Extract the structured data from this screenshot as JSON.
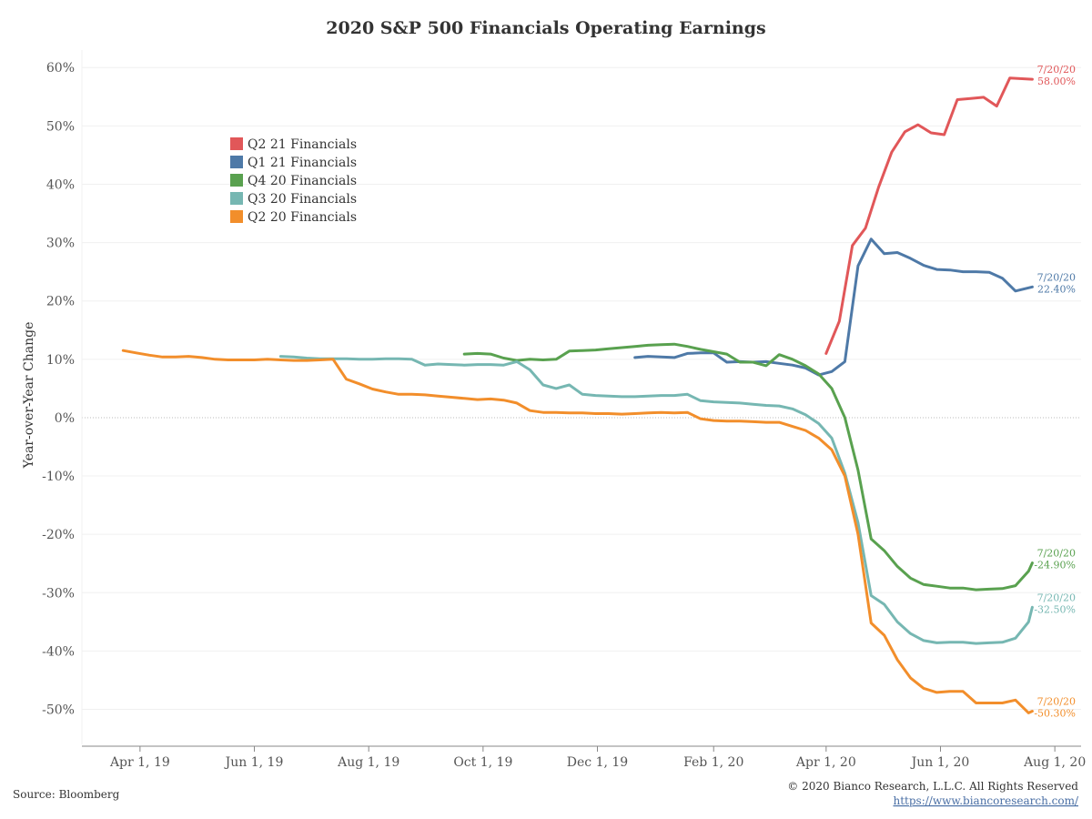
{
  "chart_data": {
    "type": "line",
    "title": "2020 S&P 500 Financials Operating Earnings",
    "ylabel": "Year-over-Year Change",
    "xlabel": "",
    "ylim": [
      -56,
      63
    ],
    "y_ticks": [
      60,
      50,
      40,
      30,
      20,
      10,
      0,
      -10,
      -20,
      -30,
      -40,
      -50
    ],
    "y_tick_labels": [
      "60%",
      "50%",
      "40%",
      "30%",
      "20%",
      "10%",
      "0%",
      "-10%",
      "-20%",
      "-30%",
      "-40%",
      "-50%"
    ],
    "x_range": [
      "2019-03-01",
      "2020-08-15"
    ],
    "x_ticks": [
      "2019-04-01",
      "2019-06-01",
      "2019-08-01",
      "2019-10-01",
      "2019-12-01",
      "2020-02-01",
      "2020-04-01",
      "2020-06-01",
      "2020-08-01"
    ],
    "x_tick_labels": [
      "Apr 1, 19",
      "Jun 1, 19",
      "Aug 1, 19",
      "Oct 1, 19",
      "Dec 1, 19",
      "Feb 1, 20",
      "Apr 1, 20",
      "Jun 1, 20",
      "Aug 1, 20"
    ],
    "legend": "upper-left",
    "series": [
      {
        "name": "Q2 21 Financials",
        "color": "#e15759",
        "end_date": "7/20/20",
        "end_value": "58.00%",
        "points": [
          [
            "2020-04-01",
            11
          ],
          [
            "2020-04-08",
            16.5
          ],
          [
            "2020-04-15",
            29.5
          ],
          [
            "2020-04-22",
            32.5
          ],
          [
            "2020-04-29",
            39.5
          ],
          [
            "2020-05-06",
            45.5
          ],
          [
            "2020-05-13",
            49
          ],
          [
            "2020-05-20",
            50.2
          ],
          [
            "2020-05-27",
            48.8
          ],
          [
            "2020-06-03",
            48.5
          ],
          [
            "2020-06-10",
            54.5
          ],
          [
            "2020-06-17",
            54.7
          ],
          [
            "2020-06-24",
            54.9
          ],
          [
            "2020-07-01",
            53.4
          ],
          [
            "2020-07-08",
            58.2
          ],
          [
            "2020-07-20",
            58
          ]
        ]
      },
      {
        "name": "Q1 21 Financials",
        "color": "#4e79a7",
        "end_date": "7/20/20",
        "end_value": "22.40%",
        "points": [
          [
            "2019-12-21",
            10.3
          ],
          [
            "2019-12-28",
            10.5
          ],
          [
            "2020-01-04",
            10.4
          ],
          [
            "2020-01-11",
            10.3
          ],
          [
            "2020-01-18",
            11
          ],
          [
            "2020-01-25",
            11.1
          ],
          [
            "2020-02-01",
            11.1
          ],
          [
            "2020-02-08",
            9.5
          ],
          [
            "2020-02-15",
            9.6
          ],
          [
            "2020-02-22",
            9.5
          ],
          [
            "2020-02-29",
            9.6
          ],
          [
            "2020-03-07",
            9.3
          ],
          [
            "2020-03-14",
            9
          ],
          [
            "2020-03-21",
            8.5
          ],
          [
            "2020-03-28",
            7.3
          ],
          [
            "2020-04-04",
            7.9
          ],
          [
            "2020-04-11",
            9.6
          ],
          [
            "2020-04-18",
            26
          ],
          [
            "2020-04-25",
            30.6
          ],
          [
            "2020-05-02",
            28.1
          ],
          [
            "2020-05-09",
            28.3
          ],
          [
            "2020-05-16",
            27.3
          ],
          [
            "2020-05-23",
            26.1
          ],
          [
            "2020-05-30",
            25.4
          ],
          [
            "2020-06-06",
            25.3
          ],
          [
            "2020-06-13",
            25
          ],
          [
            "2020-06-20",
            25
          ],
          [
            "2020-06-27",
            24.9
          ],
          [
            "2020-07-04",
            23.9
          ],
          [
            "2020-07-11",
            21.7
          ],
          [
            "2020-07-20",
            22.4
          ]
        ]
      },
      {
        "name": "Q4 20 Financials",
        "color": "#59a14f",
        "end_date": "7/20/20",
        "end_value": "-24.90%",
        "points": [
          [
            "2019-09-21",
            10.9
          ],
          [
            "2019-09-28",
            11
          ],
          [
            "2019-10-05",
            10.9
          ],
          [
            "2019-10-12",
            10.2
          ],
          [
            "2019-10-19",
            9.8
          ],
          [
            "2019-10-26",
            10
          ],
          [
            "2019-11-02",
            9.9
          ],
          [
            "2019-11-09",
            10
          ],
          [
            "2019-11-16",
            11.4
          ],
          [
            "2019-11-23",
            11.5
          ],
          [
            "2019-11-30",
            11.6
          ],
          [
            "2019-12-07",
            11.8
          ],
          [
            "2019-12-14",
            12
          ],
          [
            "2019-12-21",
            12.2
          ],
          [
            "2019-12-28",
            12.4
          ],
          [
            "2020-01-04",
            12.5
          ],
          [
            "2020-01-11",
            12.6
          ],
          [
            "2020-01-18",
            12.2
          ],
          [
            "2020-01-25",
            11.7
          ],
          [
            "2020-02-01",
            11.3
          ],
          [
            "2020-02-08",
            10.9
          ],
          [
            "2020-02-15",
            9.5
          ],
          [
            "2020-02-22",
            9.5
          ],
          [
            "2020-02-29",
            8.9
          ],
          [
            "2020-03-07",
            10.8
          ],
          [
            "2020-03-14",
            10
          ],
          [
            "2020-03-21",
            8.9
          ],
          [
            "2020-03-28",
            7.5
          ],
          [
            "2020-04-04",
            5
          ],
          [
            "2020-04-11",
            0
          ],
          [
            "2020-04-18",
            -9
          ],
          [
            "2020-04-25",
            -20.8
          ],
          [
            "2020-05-02",
            -22.8
          ],
          [
            "2020-05-09",
            -25.5
          ],
          [
            "2020-05-16",
            -27.5
          ],
          [
            "2020-05-23",
            -28.6
          ],
          [
            "2020-05-30",
            -28.9
          ],
          [
            "2020-06-06",
            -29.2
          ],
          [
            "2020-06-13",
            -29.2
          ],
          [
            "2020-06-20",
            -29.5
          ],
          [
            "2020-06-27",
            -29.4
          ],
          [
            "2020-07-04",
            -29.3
          ],
          [
            "2020-07-11",
            -28.8
          ],
          [
            "2020-07-18",
            -26.3
          ],
          [
            "2020-07-20",
            -24.9
          ]
        ]
      },
      {
        "name": "Q3 20 Financials",
        "color": "#76b7b2",
        "end_date": "7/20/20",
        "end_value": "-32.50%",
        "points": [
          [
            "2019-06-15",
            10.5
          ],
          [
            "2019-06-22",
            10.4
          ],
          [
            "2019-06-29",
            10.2
          ],
          [
            "2019-07-06",
            10.1
          ],
          [
            "2019-07-13",
            10.1
          ],
          [
            "2019-07-20",
            10.1
          ],
          [
            "2019-07-27",
            10
          ],
          [
            "2019-08-03",
            10
          ],
          [
            "2019-08-10",
            10.1
          ],
          [
            "2019-08-17",
            10.1
          ],
          [
            "2019-08-24",
            10
          ],
          [
            "2019-08-31",
            9
          ],
          [
            "2019-09-07",
            9.2
          ],
          [
            "2019-09-14",
            9.1
          ],
          [
            "2019-09-21",
            9
          ],
          [
            "2019-09-28",
            9.1
          ],
          [
            "2019-10-05",
            9.1
          ],
          [
            "2019-10-12",
            9
          ],
          [
            "2019-10-19",
            9.6
          ],
          [
            "2019-10-26",
            8.2
          ],
          [
            "2019-11-02",
            5.6
          ],
          [
            "2019-11-09",
            5
          ],
          [
            "2019-11-16",
            5.6
          ],
          [
            "2019-11-23",
            4
          ],
          [
            "2019-11-30",
            3.8
          ],
          [
            "2019-12-07",
            3.7
          ],
          [
            "2019-12-14",
            3.6
          ],
          [
            "2019-12-21",
            3.6
          ],
          [
            "2019-12-28",
            3.7
          ],
          [
            "2020-01-04",
            3.8
          ],
          [
            "2020-01-11",
            3.8
          ],
          [
            "2020-01-18",
            4
          ],
          [
            "2020-01-25",
            2.9
          ],
          [
            "2020-02-01",
            2.7
          ],
          [
            "2020-02-08",
            2.6
          ],
          [
            "2020-02-15",
            2.5
          ],
          [
            "2020-02-22",
            2.3
          ],
          [
            "2020-02-29",
            2.1
          ],
          [
            "2020-03-07",
            2
          ],
          [
            "2020-03-14",
            1.5
          ],
          [
            "2020-03-21",
            0.5
          ],
          [
            "2020-03-28",
            -1
          ],
          [
            "2020-04-04",
            -3.5
          ],
          [
            "2020-04-11",
            -9.5
          ],
          [
            "2020-04-18",
            -18
          ],
          [
            "2020-04-25",
            -30.5
          ],
          [
            "2020-05-02",
            -32
          ],
          [
            "2020-05-09",
            -35
          ],
          [
            "2020-05-16",
            -37
          ],
          [
            "2020-05-23",
            -38.2
          ],
          [
            "2020-05-30",
            -38.6
          ],
          [
            "2020-06-06",
            -38.5
          ],
          [
            "2020-06-13",
            -38.5
          ],
          [
            "2020-06-20",
            -38.7
          ],
          [
            "2020-06-27",
            -38.6
          ],
          [
            "2020-07-04",
            -38.5
          ],
          [
            "2020-07-11",
            -37.8
          ],
          [
            "2020-07-18",
            -35
          ],
          [
            "2020-07-20",
            -32.5
          ]
        ]
      },
      {
        "name": "Q2 20 Financials",
        "color": "#f28e2b",
        "end_date": "7/20/20",
        "end_value": "-50.30%",
        "points": [
          [
            "2019-03-23",
            11.5
          ],
          [
            "2019-03-30",
            11.1
          ],
          [
            "2019-04-06",
            10.7
          ],
          [
            "2019-04-13",
            10.4
          ],
          [
            "2019-04-20",
            10.4
          ],
          [
            "2019-04-27",
            10.5
          ],
          [
            "2019-05-04",
            10.3
          ],
          [
            "2019-05-11",
            10
          ],
          [
            "2019-05-18",
            9.9
          ],
          [
            "2019-05-25",
            9.9
          ],
          [
            "2019-06-01",
            9.9
          ],
          [
            "2019-06-08",
            10
          ],
          [
            "2019-06-15",
            9.9
          ],
          [
            "2019-06-22",
            9.8
          ],
          [
            "2019-06-29",
            9.8
          ],
          [
            "2019-07-06",
            9.9
          ],
          [
            "2019-07-13",
            10
          ],
          [
            "2019-07-20",
            6.6
          ],
          [
            "2019-07-27",
            5.8
          ],
          [
            "2019-08-03",
            4.9
          ],
          [
            "2019-08-10",
            4.4
          ],
          [
            "2019-08-17",
            4
          ],
          [
            "2019-08-24",
            4
          ],
          [
            "2019-08-31",
            3.9
          ],
          [
            "2019-09-07",
            3.7
          ],
          [
            "2019-09-14",
            3.5
          ],
          [
            "2019-09-21",
            3.3
          ],
          [
            "2019-09-28",
            3.1
          ],
          [
            "2019-10-05",
            3.2
          ],
          [
            "2019-10-12",
            3
          ],
          [
            "2019-10-19",
            2.5
          ],
          [
            "2019-10-26",
            1.2
          ],
          [
            "2019-11-02",
            0.9
          ],
          [
            "2019-11-09",
            0.9
          ],
          [
            "2019-11-16",
            0.8
          ],
          [
            "2019-11-23",
            0.8
          ],
          [
            "2019-11-30",
            0.7
          ],
          [
            "2019-12-07",
            0.7
          ],
          [
            "2019-12-14",
            0.6
          ],
          [
            "2019-12-21",
            0.7
          ],
          [
            "2019-12-28",
            0.8
          ],
          [
            "2020-01-04",
            0.9
          ],
          [
            "2020-01-11",
            0.8
          ],
          [
            "2020-01-18",
            0.9
          ],
          [
            "2020-01-25",
            -0.2
          ],
          [
            "2020-02-01",
            -0.5
          ],
          [
            "2020-02-08",
            -0.6
          ],
          [
            "2020-02-15",
            -0.6
          ],
          [
            "2020-02-22",
            -0.7
          ],
          [
            "2020-02-29",
            -0.8
          ],
          [
            "2020-03-07",
            -0.8
          ],
          [
            "2020-03-14",
            -1.5
          ],
          [
            "2020-03-21",
            -2.2
          ],
          [
            "2020-03-28",
            -3.5
          ],
          [
            "2020-04-04",
            -5.5
          ],
          [
            "2020-04-11",
            -10
          ],
          [
            "2020-04-18",
            -20
          ],
          [
            "2020-04-25",
            -35.2
          ],
          [
            "2020-05-02",
            -37.3
          ],
          [
            "2020-05-09",
            -41.5
          ],
          [
            "2020-05-16",
            -44.6
          ],
          [
            "2020-05-23",
            -46.4
          ],
          [
            "2020-05-30",
            -47.1
          ],
          [
            "2020-06-06",
            -46.9
          ],
          [
            "2020-06-13",
            -46.9
          ],
          [
            "2020-06-20",
            -48.9
          ],
          [
            "2020-06-27",
            -48.9
          ],
          [
            "2020-07-04",
            -48.9
          ],
          [
            "2020-07-11",
            -48.4
          ],
          [
            "2020-07-18",
            -50.6
          ],
          [
            "2020-07-20",
            -50.3
          ]
        ]
      }
    ]
  },
  "footer": {
    "source": "Source: Bloomberg",
    "copyright": "© 2020 Bianco Research, L.L.C. All Rights Reserved",
    "url": "https://www.biancoresearch.com/"
  }
}
